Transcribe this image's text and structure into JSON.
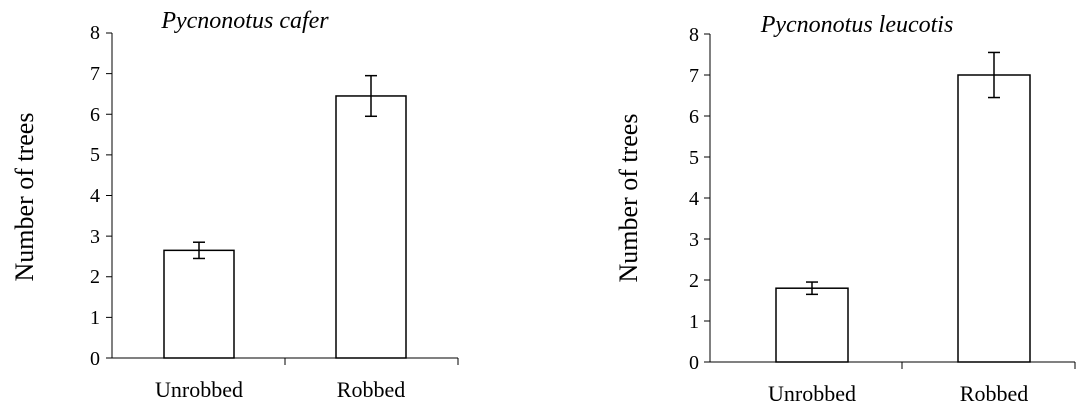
{
  "chart_data": [
    {
      "type": "bar",
      "title": "Pycnonotus cafer",
      "xlabel": "",
      "ylabel": "Number of trees",
      "categories": [
        "Unrobbed",
        "Robbed"
      ],
      "values": [
        2.65,
        6.45
      ],
      "error": [
        0.2,
        0.5
      ],
      "ylim": [
        0,
        8
      ],
      "yticks": [
        "0",
        "1",
        "2",
        "3",
        "4",
        "5",
        "6",
        "7",
        "8"
      ],
      "grid": false,
      "legend": "none",
      "bar_fill": "#ffffff",
      "bar_stroke": "#000000"
    },
    {
      "type": "bar",
      "title": "Pycnonotus leucotis",
      "xlabel": "",
      "ylabel": "Number of trees",
      "categories": [
        "Unrobbed",
        "Robbed"
      ],
      "values": [
        1.8,
        7.0
      ],
      "error": [
        0.15,
        0.55
      ],
      "ylim": [
        0,
        8
      ],
      "yticks": [
        "0",
        "1",
        "2",
        "3",
        "4",
        "5",
        "6",
        "7",
        "8"
      ],
      "grid": false,
      "legend": "none",
      "bar_fill": "#ffffff",
      "bar_stroke": "#000000"
    }
  ]
}
